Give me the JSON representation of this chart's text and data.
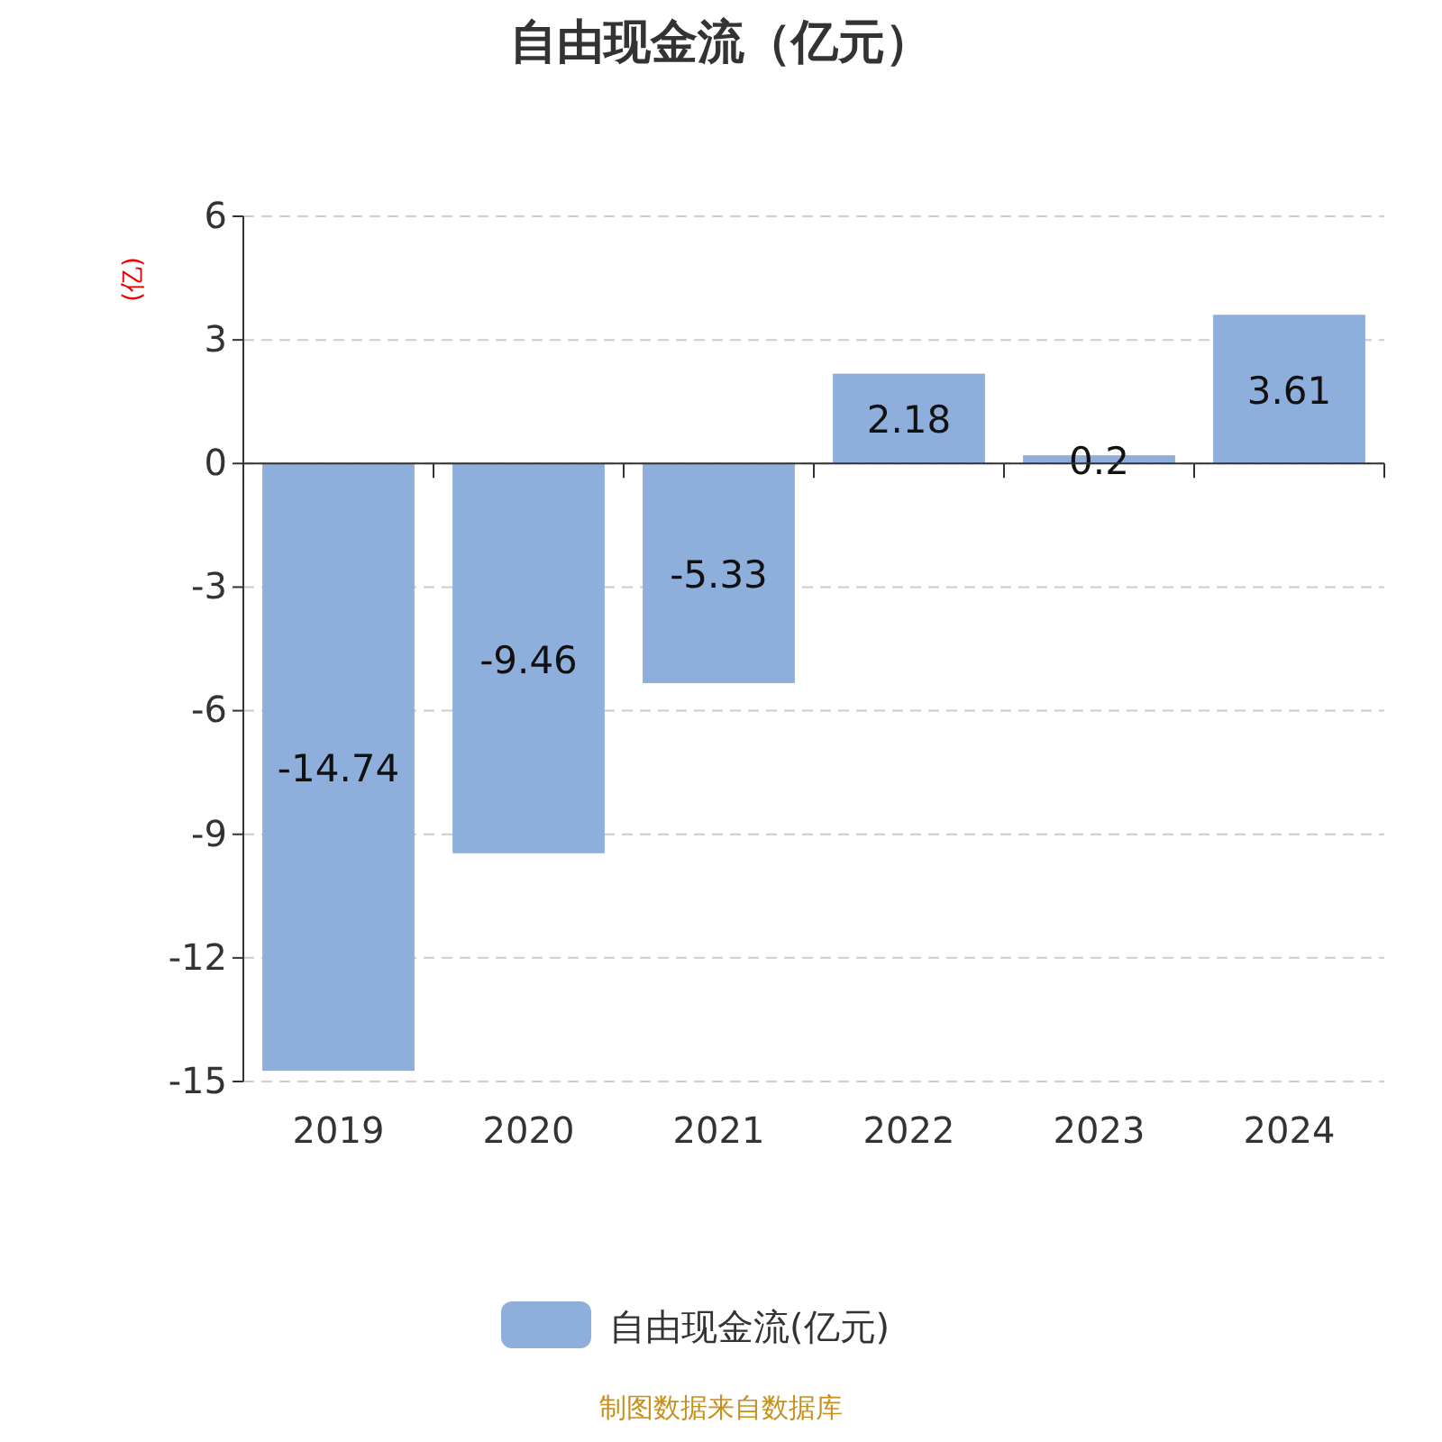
{
  "chart_data": {
    "type": "bar",
    "title": "自由现金流（亿元）",
    "ylabel": "(亿)",
    "categories": [
      "2019",
      "2020",
      "2021",
      "2022",
      "2023",
      "2024"
    ],
    "series": [
      {
        "name": "自由现金流(亿元)",
        "color": "#8eaedb",
        "values": [
          -14.74,
          -9.46,
          -5.33,
          2.18,
          0.2,
          3.61
        ]
      }
    ],
    "ylim": [
      -15,
      6
    ],
    "yticks": [
      -15,
      -12,
      -9,
      -6,
      -3,
      0,
      3,
      6
    ],
    "grid": "y",
    "legend": "bottom",
    "data_labels": true,
    "annotations": [
      "制图数据来自数据库"
    ]
  }
}
